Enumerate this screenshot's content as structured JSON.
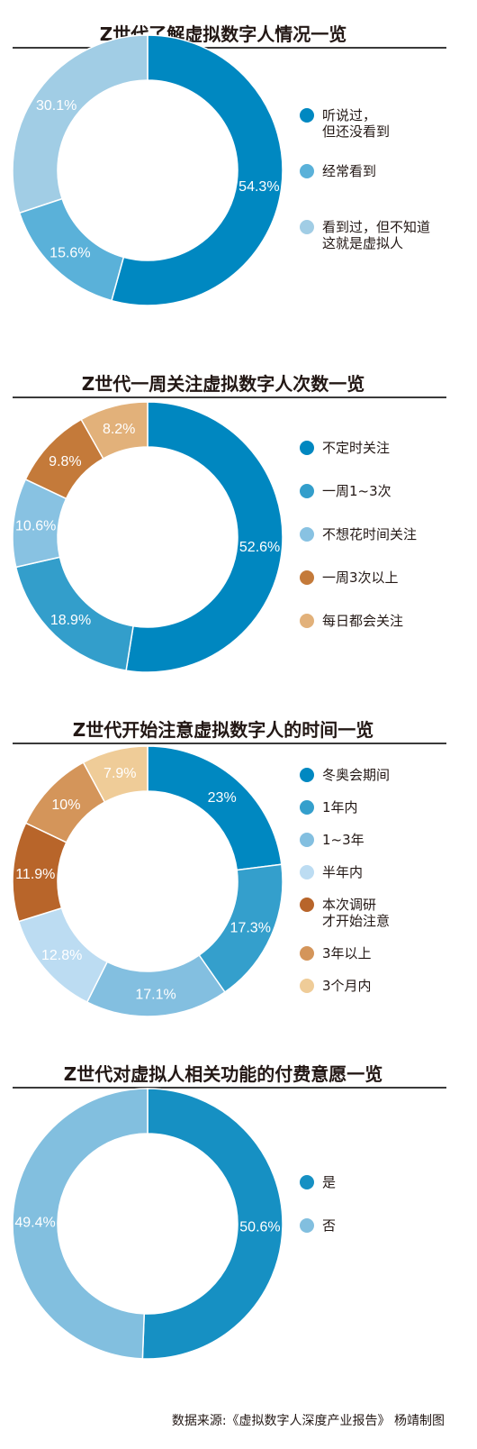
{
  "chart_data": [
    {
      "type": "pie",
      "title": "Z世代了解虚拟数字人情况一览",
      "slices": [
        {
          "label": "听说过，\n但还没看到",
          "value": 54.3,
          "display": "54.3%",
          "color": "#0088c1"
        },
        {
          "label": "经常看到",
          "value": 15.6,
          "display": "15.6%",
          "color": "#5ab1d9"
        },
        {
          "label": "看到过，但不知道\n这就是虚拟人",
          "value": 30.1,
          "display": "30.1%",
          "color": "#a1cde5"
        }
      ]
    },
    {
      "type": "pie",
      "title": "Z世代一周关注虚拟数字人次数一览",
      "slices": [
        {
          "label": "不定时关注",
          "value": 52.6,
          "display": "52.6%",
          "color": "#0087c0"
        },
        {
          "label": "一周1~3次",
          "value": 18.9,
          "display": "18.9%",
          "color": "#339ecb"
        },
        {
          "label": "不想花时间关注",
          "value": 10.6,
          "display": "10.6%",
          "color": "#88c2e2"
        },
        {
          "label": "一周3次以上",
          "value": 9.8,
          "display": "9.8%",
          "color": "#c47a3a"
        },
        {
          "label": "每日都会关注",
          "value": 8.2,
          "display": "8.2%",
          "color": "#e2b17a"
        }
      ]
    },
    {
      "type": "pie",
      "title": "Z世代开始注意虚拟数字人的时间一览",
      "slices": [
        {
          "label": "冬奥会期间",
          "value": 23,
          "display": "23%",
          "color": "#0088c1"
        },
        {
          "label": "1年内",
          "value": 17.3,
          "display": "17.3%",
          "color": "#349fcc"
        },
        {
          "label": "1~3年",
          "value": 17.1,
          "display": "17.1%",
          "color": "#83bfe0"
        },
        {
          "label": "半年内",
          "value": 12.8,
          "display": "12.8%",
          "color": "#bcdcf2"
        },
        {
          "label": "本次调研\n才开始注意",
          "value": 11.9,
          "display": "11.9%",
          "color": "#b8652a"
        },
        {
          "label": "3年以上",
          "value": 10,
          "display": "10%",
          "color": "#d4955a"
        },
        {
          "label": "3个月内",
          "value": 7.9,
          "display": "7.9%",
          "color": "#efcc98"
        }
      ]
    },
    {
      "type": "pie",
      "title": "Z世代对虚拟人相关功能的付费意愿一览",
      "slices": [
        {
          "label": "是",
          "value": 50.6,
          "display": "50.6%",
          "color": "#1690c3"
        },
        {
          "label": "否",
          "value": 49.4,
          "display": "49.4%",
          "color": "#82bfdf"
        }
      ]
    }
  ],
  "source": "数据来源:《虚拟数字人深度产业报告》 杨靖制图"
}
